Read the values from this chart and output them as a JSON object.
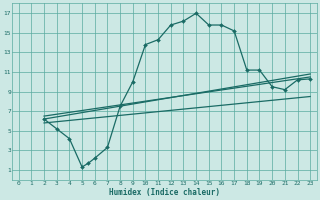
{
  "xlabel": "Humidex (Indice chaleur)",
  "bg_color": "#cce8e4",
  "grid_color": "#5aaba0",
  "line_color": "#1a6b65",
  "xlim": [
    -0.5,
    23.5
  ],
  "ylim": [
    0,
    18
  ],
  "xticks": [
    0,
    1,
    2,
    3,
    4,
    5,
    6,
    7,
    8,
    9,
    10,
    11,
    12,
    13,
    14,
    15,
    16,
    17,
    18,
    19,
    20,
    21,
    22,
    23
  ],
  "yticks": [
    1,
    3,
    5,
    7,
    9,
    11,
    13,
    15,
    17
  ],
  "line1_x": [
    2,
    3,
    4,
    5,
    5.5,
    6,
    7,
    8,
    9,
    10,
    11,
    12,
    13,
    14,
    15,
    16,
    17,
    18,
    19,
    20,
    21,
    22,
    23
  ],
  "line1_y": [
    6.2,
    5.2,
    4.2,
    1.3,
    1.7,
    2.2,
    3.3,
    7.5,
    10.0,
    13.8,
    14.3,
    15.8,
    16.2,
    17.0,
    15.8,
    15.8,
    15.2,
    11.2,
    11.2,
    9.5,
    9.2,
    10.2,
    10.3
  ],
  "line2_x": [
    2,
    23
  ],
  "line2_y": [
    6.5,
    10.5
  ],
  "line3_x": [
    2,
    23
  ],
  "line3_y": [
    6.2,
    10.8
  ],
  "line4_x": [
    2,
    23
  ],
  "line4_y": [
    5.8,
    8.5
  ]
}
